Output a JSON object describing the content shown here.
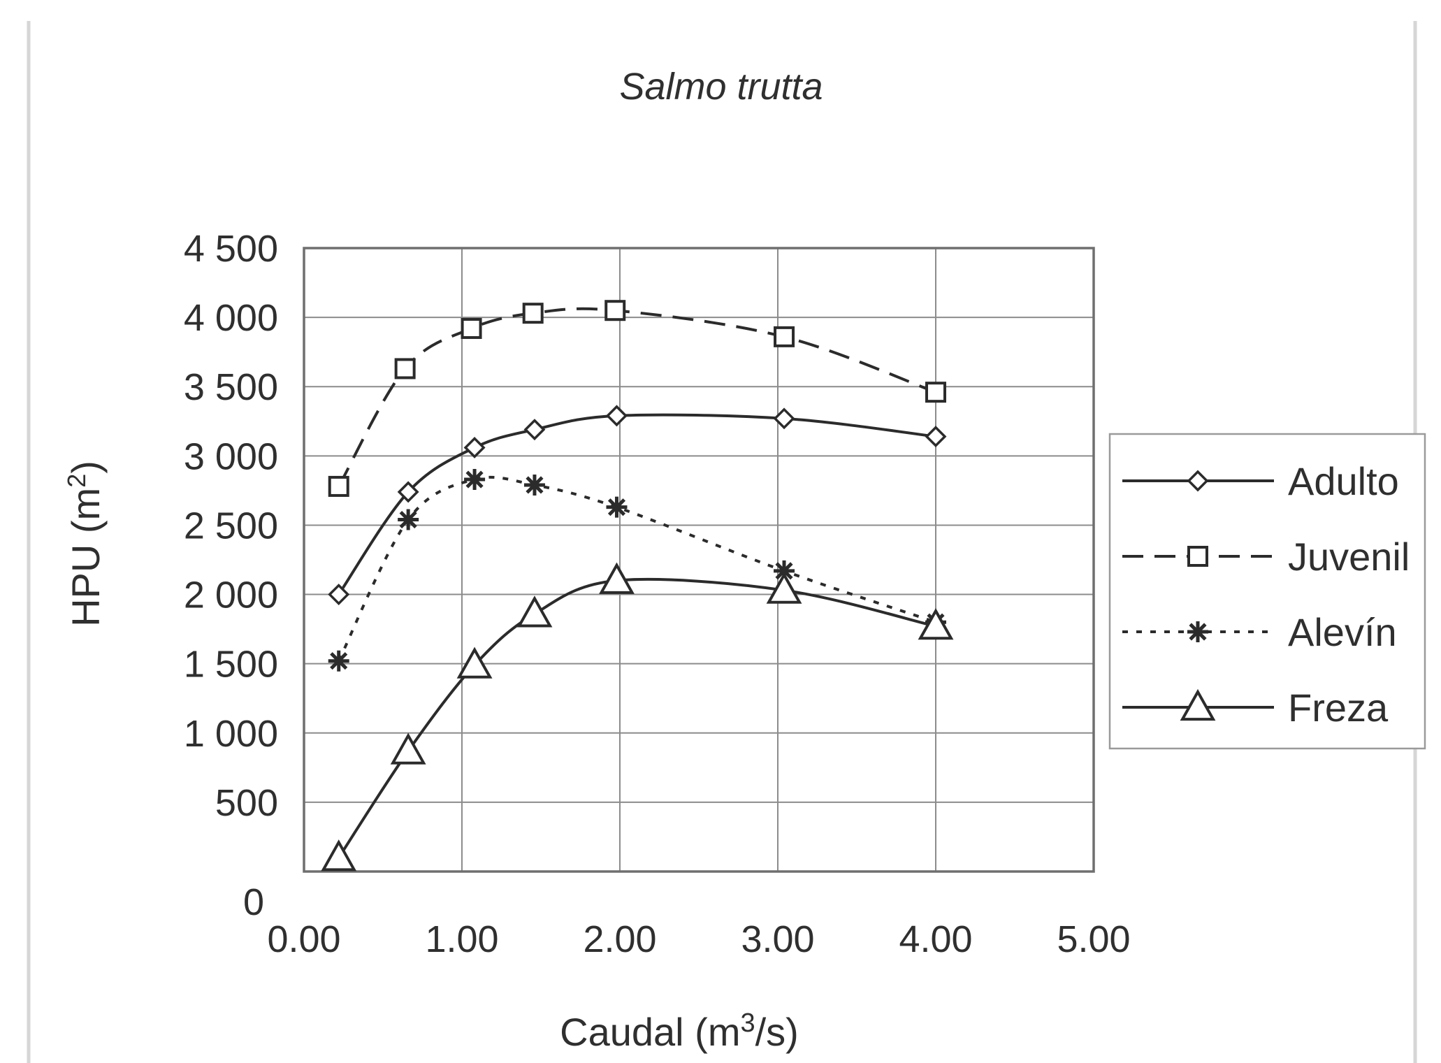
{
  "chart_data": {
    "type": "line",
    "title": "Salmo trutta",
    "xlabel": "Caudal (m3/s)",
    "ylabel": "HPU (m2)",
    "xlim": [
      0,
      5
    ],
    "ylim": [
      0,
      4500
    ],
    "xticks": [
      0,
      1,
      2,
      3,
      4,
      5
    ],
    "xtick_labels": [
      "0.00",
      "1.00",
      "2.00",
      "3.00",
      "4.00",
      "5.00"
    ],
    "yticks": [
      0,
      500,
      1000,
      1500,
      2000,
      2500,
      3000,
      3500,
      4000,
      4500
    ],
    "ytick_labels": [
      "0",
      "500",
      "1 000",
      "1 500",
      "2 000",
      "2 500",
      "3 000",
      "3 500",
      "4 000",
      "4 500"
    ],
    "grid": true,
    "legend_position": "right",
    "series": [
      {
        "name": "Adulto",
        "marker": "diamond",
        "line_style": "solid",
        "points": [
          [
            0.22,
            2000
          ],
          [
            0.66,
            2740
          ],
          [
            1.08,
            3060
          ],
          [
            1.46,
            3190
          ],
          [
            1.98,
            3290
          ],
          [
            3.04,
            3270
          ],
          [
            4.0,
            3140
          ]
        ]
      },
      {
        "name": "Juvenil",
        "marker": "square",
        "line_style": "dashed",
        "points": [
          [
            0.22,
            2780
          ],
          [
            0.64,
            3630
          ],
          [
            1.06,
            3920
          ],
          [
            1.45,
            4030
          ],
          [
            1.97,
            4050
          ],
          [
            3.04,
            3860
          ],
          [
            4.0,
            3460
          ]
        ]
      },
      {
        "name": "Alevín",
        "marker": "asterisk",
        "line_style": "dotted",
        "points": [
          [
            0.22,
            1520
          ],
          [
            0.66,
            2540
          ],
          [
            1.08,
            2830
          ],
          [
            1.46,
            2790
          ],
          [
            1.98,
            2630
          ],
          [
            3.04,
            2170
          ],
          [
            4.0,
            1800
          ]
        ]
      },
      {
        "name": "Freza",
        "marker": "triangle",
        "line_style": "solid",
        "points": [
          [
            0.22,
            100
          ],
          [
            0.66,
            870
          ],
          [
            1.08,
            1490
          ],
          [
            1.46,
            1860
          ],
          [
            1.98,
            2100
          ],
          [
            3.04,
            2030
          ],
          [
            4.0,
            1770
          ]
        ]
      }
    ],
    "colors": {
      "line": "#2b2b2b",
      "grid": "#8c8c8c",
      "marker_fill": "#ffffff"
    }
  }
}
